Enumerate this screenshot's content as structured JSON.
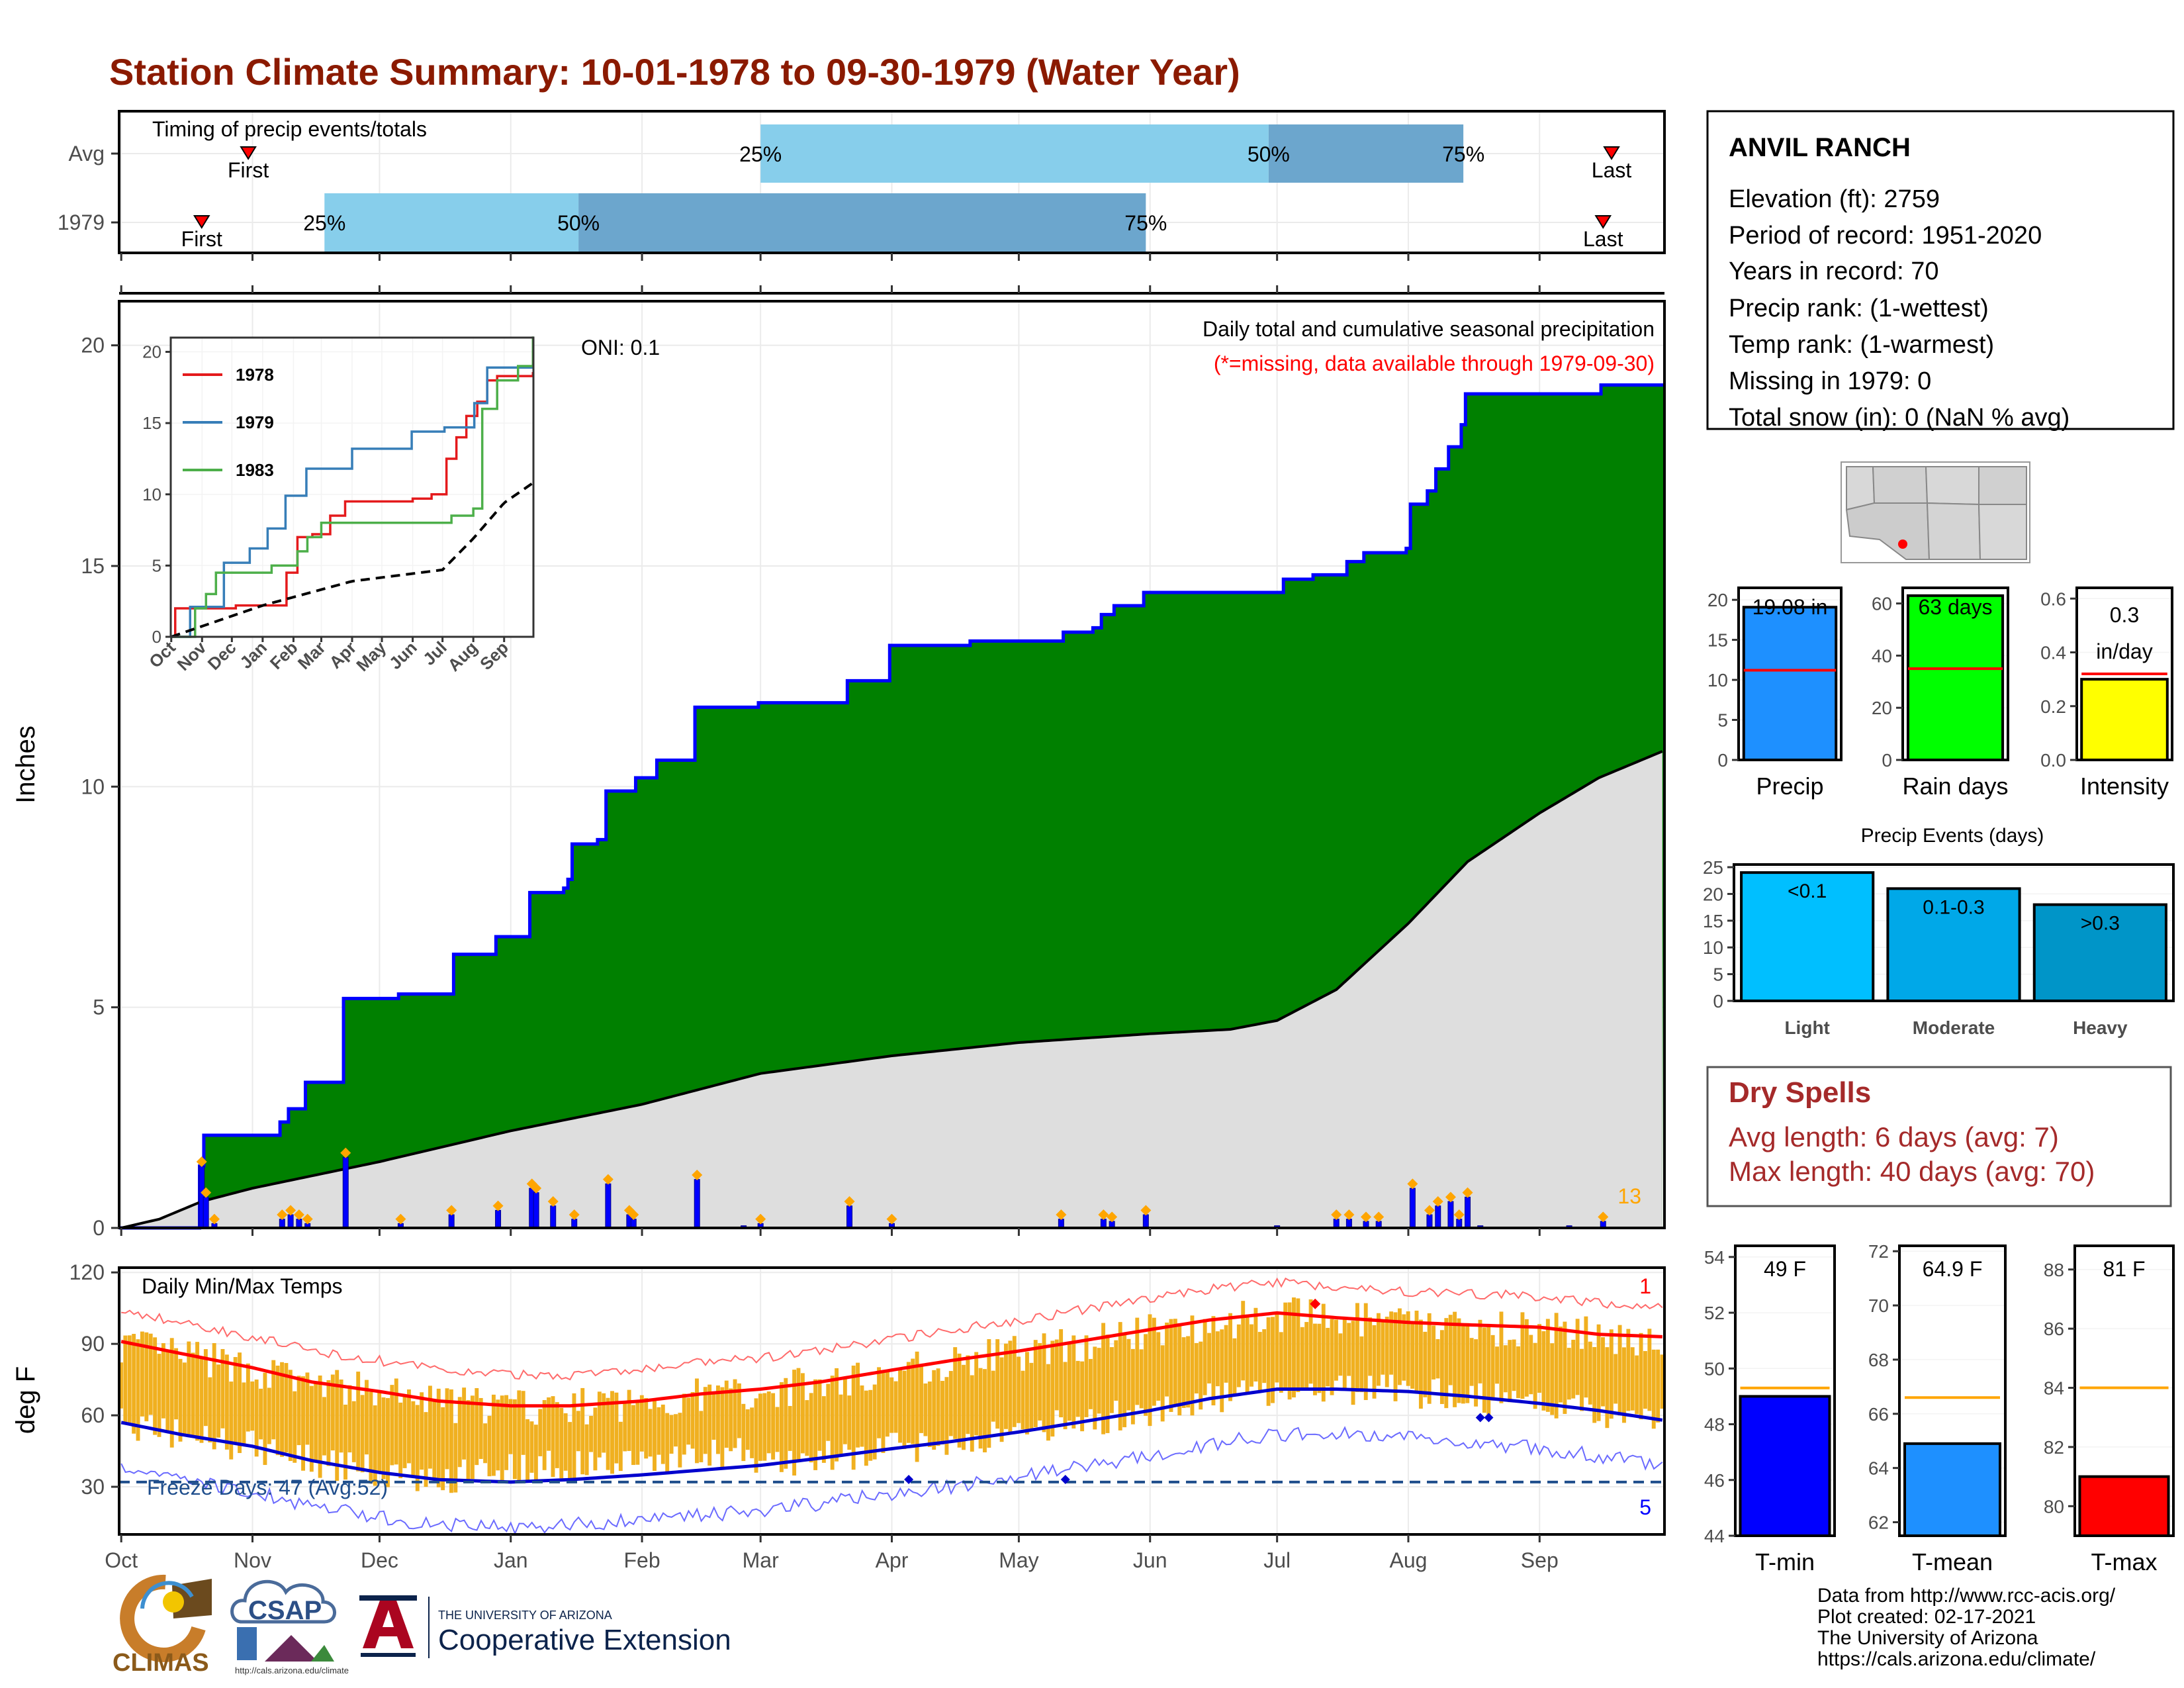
{
  "title": "Station Climate Summary: 10-01-1978 to 09-30-1979 (Water Year)",
  "colors": {
    "title": "#8b1a00",
    "green": "#008000",
    "blue": "#0000ff",
    "gold": "#f0b020",
    "red": "#ff0000",
    "navy": "#00008b",
    "dryspell": "#a52a2a"
  },
  "station": {
    "name": "ANVIL RANCH",
    "lines": [
      "Elevation (ft): 2759",
      "Period of record: 1951-2020",
      "Years in record: 70",
      "Precip rank:  (1-wettest)",
      "Temp rank:  (1-warmest)",
      "Missing in 1979: 0",
      "Total snow (in): 0 (NaN % avg)"
    ]
  },
  "dry_spells": {
    "title": "Dry Spells",
    "avg": "Avg length: 6 days (avg: 7)",
    "max": "Max length: 40 days (avg: 70)"
  },
  "footer": [
    "Data from http://www.rcc-acis.org/",
    "Plot created: 02-17-2021",
    "The University of Arizona",
    "https://cals.arizona.edu/climate/"
  ],
  "logos": {
    "climas": "CLIMAS",
    "csap": "CSAP",
    "csap_url": "http://cals.arizona.edu/climate",
    "ua_small": "THE UNIVERSITY OF ARIZONA",
    "ua_big": "Cooperative Extension"
  },
  "chart_data": [
    {
      "id": "timing",
      "type": "bar",
      "title": "Timing of precip events/totals",
      "rows": [
        {
          "name": "Avg",
          "first": "Oct 31",
          "p25": "Mar 1",
          "p50": "Jun 29",
          "p75": "Aug 14",
          "last": "Sep 18"
        },
        {
          "name": "1979",
          "first": "Oct 20",
          "p25": "Nov 18",
          "p50": "Jan 17",
          "p75": "May 31",
          "last": "Sep 16"
        }
      ],
      "labels": {
        "first": "First",
        "last": "Last",
        "p25": "25%",
        "p50": "50%",
        "p75": "75%"
      }
    },
    {
      "id": "precip",
      "type": "area",
      "ylabel": "Inches",
      "ylim": [
        0,
        21
      ],
      "yticks": [
        0,
        5,
        10,
        15,
        20
      ],
      "note": "Daily total and cumulative seasonal precipitation",
      "missing_note": "(*=missing, data available through 1979-09-30)",
      "oni": "ONI: 0.1",
      "count_label": "13",
      "cumulative_1979": [
        [
          "Oct 1",
          0
        ],
        [
          "Oct 20",
          1.4
        ],
        [
          "Oct 21",
          2.1
        ],
        [
          "Nov 5",
          2.1
        ],
        [
          "Nov 8",
          2.4
        ],
        [
          "Nov 10",
          2.7
        ],
        [
          "Nov 14",
          3.3
        ],
        [
          "Nov 22",
          3.3
        ],
        [
          "Nov 23",
          5.2
        ],
        [
          "Dec 5",
          5.2
        ],
        [
          "Dec 6",
          5.3
        ],
        [
          "Dec 17",
          5.3
        ],
        [
          "Dec 19",
          6.2
        ],
        [
          "Dec 28",
          6.2
        ],
        [
          "Dec 29",
          6.6
        ],
        [
          "Jan 5",
          6.6
        ],
        [
          "Jan 6",
          7.6
        ],
        [
          "Jan 14",
          7.7
        ],
        [
          "Jan 15",
          7.9
        ],
        [
          "Jan 16",
          8.7
        ],
        [
          "Jan 22",
          8.8
        ],
        [
          "Jan 24",
          9.9
        ],
        [
          "Jan 31",
          10.2
        ],
        [
          "Feb 5",
          10.6
        ],
        [
          "Feb 13",
          10.6
        ],
        [
          "Feb 14",
          11.8
        ],
        [
          "Feb 28",
          11.8
        ],
        [
          "Mar 1",
          11.9
        ],
        [
          "Mar 20",
          11.9
        ],
        [
          "Mar 22",
          12.4
        ],
        [
          "Mar 30",
          12.4
        ],
        [
          "Apr 1",
          13.2
        ],
        [
          "Apr 20",
          13.3
        ],
        [
          "May 10",
          13.3
        ],
        [
          "May 12",
          13.5
        ],
        [
          "May 19",
          13.6
        ],
        [
          "May 21",
          13.9
        ],
        [
          "May 24",
          14.1
        ],
        [
          "May 31",
          14.4
        ],
        [
          "Jun 30",
          14.4
        ],
        [
          "Jul 3",
          14.7
        ],
        [
          "Jul 10",
          14.8
        ],
        [
          "Jul 18",
          15.1
        ],
        [
          "Jul 22",
          15.3
        ],
        [
          "Aug 1",
          15.4
        ],
        [
          "Aug 2",
          16.4
        ],
        [
          "Aug 6",
          16.7
        ],
        [
          "Aug 8",
          17.2
        ],
        [
          "Aug 11",
          17.7
        ],
        [
          "Aug 14",
          18.2
        ],
        [
          "Aug 15",
          18.9
        ],
        [
          "Aug 31",
          18.9
        ],
        [
          "Sep 16",
          19.1
        ],
        [
          "Sep 30",
          19.1
        ]
      ],
      "climatology": [
        [
          "Oct 1",
          0
        ],
        [
          "Oct 10",
          0.2
        ],
        [
          "Oct 20",
          0.6
        ],
        [
          "Nov 1",
          0.9
        ],
        [
          "Dec 1",
          1.5
        ],
        [
          "Jan 1",
          2.2
        ],
        [
          "Feb 1",
          2.8
        ],
        [
          "Mar 1",
          3.5
        ],
        [
          "Apr 1",
          3.9
        ],
        [
          "May 1",
          4.2
        ],
        [
          "Jun 1",
          4.4
        ],
        [
          "Jun 20",
          4.5
        ],
        [
          "Jul 1",
          4.7
        ],
        [
          "Jul 15",
          5.4
        ],
        [
          "Aug 1",
          6.9
        ],
        [
          "Aug 15",
          8.3
        ],
        [
          "Sep 1",
          9.4
        ],
        [
          "Sep 15",
          10.2
        ],
        [
          "Sep 30",
          10.8
        ]
      ],
      "daily_1979": [
        [
          "Oct 20",
          1.4
        ],
        [
          "Oct 21",
          0.7
        ],
        [
          "Oct 23",
          0.1
        ],
        [
          "Nov 8",
          0.2
        ],
        [
          "Nov 10",
          0.3
        ],
        [
          "Nov 12",
          0.2
        ],
        [
          "Nov 14",
          0.1
        ],
        [
          "Nov 23",
          1.6
        ],
        [
          "Dec 6",
          0.1
        ],
        [
          "Dec 18",
          0.3
        ],
        [
          "Dec 29",
          0.4
        ],
        [
          "Jan 6",
          0.9
        ],
        [
          "Jan 7",
          0.8
        ],
        [
          "Jan 11",
          0.5
        ],
        [
          "Jan 16",
          0.2
        ],
        [
          "Jan 24",
          1.0
        ],
        [
          "Jan 29",
          0.3
        ],
        [
          "Jan 30",
          0.2
        ],
        [
          "Feb 14",
          1.1
        ],
        [
          "Feb 25",
          0.05
        ],
        [
          "Mar 1",
          0.1
        ],
        [
          "Mar 22",
          0.5
        ],
        [
          "Apr 1",
          0.1
        ],
        [
          "May 11",
          0.2
        ],
        [
          "May 21",
          0.2
        ],
        [
          "May 23",
          0.15
        ],
        [
          "May 31",
          0.3
        ],
        [
          "Jul 1",
          0.05
        ],
        [
          "Jul 15",
          0.2
        ],
        [
          "Jul 18",
          0.2
        ],
        [
          "Jul 22",
          0.15
        ],
        [
          "Jul 25",
          0.15
        ],
        [
          "Aug 2",
          0.9
        ],
        [
          "Aug 6",
          0.3
        ],
        [
          "Aug 8",
          0.5
        ],
        [
          "Aug 11",
          0.6
        ],
        [
          "Aug 13",
          0.2
        ],
        [
          "Aug 15",
          0.7
        ],
        [
          "Aug 18",
          0.05
        ],
        [
          "Sep 8",
          0.05
        ],
        [
          "Sep 16",
          0.15
        ]
      ],
      "xticks": [
        "Oct",
        "Nov",
        "Dec",
        "Jan",
        "Feb",
        "Mar",
        "Apr",
        "May",
        "Jun",
        "Jul",
        "Aug",
        "Sep"
      ]
    },
    {
      "id": "inset",
      "type": "line",
      "xticks": [
        "Oct",
        "Nov",
        "Dec",
        "Jan",
        "Feb",
        "Mar",
        "Apr",
        "May",
        "Jun",
        "Jul",
        "Aug",
        "Sep"
      ],
      "yticks": [
        0,
        5,
        10,
        15,
        20
      ],
      "ylim": [
        0,
        21
      ],
      "series": [
        {
          "name": "1978",
          "color": "#e41a1c",
          "values": [
            [
              "Oct 1",
              0
            ],
            [
              "Oct 5",
              2
            ],
            [
              "Nov 1",
              2
            ],
            [
              "Dec 5",
              2.2
            ],
            [
              "Jan 25",
              4.5
            ],
            [
              "Feb 5",
              7
            ],
            [
              "Feb 20",
              7.2
            ],
            [
              "Mar 10",
              8.5
            ],
            [
              "Mar 25",
              9.5
            ],
            [
              "Jun 1",
              9.7
            ],
            [
              "Jun 20",
              10
            ],
            [
              "Jul 5",
              12.5
            ],
            [
              "Jul 15",
              14
            ],
            [
              "Jul 25",
              15.5
            ],
            [
              "Aug 5",
              16.5
            ],
            [
              "Aug 15",
              18
            ],
            [
              "Aug 25",
              18.3
            ],
            [
              "Sep 30",
              18.5
            ]
          ]
        },
        {
          "name": "1979",
          "color": "#377eb8",
          "values": [
            [
              "Oct 1",
              0
            ],
            [
              "Oct 20",
              2.1
            ],
            [
              "Nov 23",
              5.2
            ],
            [
              "Dec 19",
              6.2
            ],
            [
              "Jan 6",
              7.6
            ],
            [
              "Jan 24",
              9.9
            ],
            [
              "Feb 14",
              11.8
            ],
            [
              "Apr 1",
              13.2
            ],
            [
              "May 31",
              14.4
            ],
            [
              "Jul 3",
              14.7
            ],
            [
              "Aug 2",
              16.4
            ],
            [
              "Aug 15",
              18.9
            ],
            [
              "Sep 30",
              19.1
            ]
          ]
        },
        {
          "name": "1983",
          "color": "#4daf4a",
          "values": [
            [
              "Oct 1",
              0
            ],
            [
              "Oct 25",
              2
            ],
            [
              "Nov 5",
              3
            ],
            [
              "Nov 15",
              4.5
            ],
            [
              "Jan 10",
              5
            ],
            [
              "Feb 5",
              6
            ],
            [
              "Feb 15",
              7
            ],
            [
              "Mar 1",
              8
            ],
            [
              "Jul 10",
              8.5
            ],
            [
              "Aug 1",
              9
            ],
            [
              "Aug 10",
              16
            ],
            [
              "Aug 25",
              18
            ],
            [
              "Sep 15",
              19
            ],
            [
              "Sep 30",
              21
            ]
          ]
        },
        {
          "name": "Avg",
          "color": "#000000",
          "dashed": true,
          "values": [
            [
              "Oct 1",
              0
            ],
            [
              "Jan 1",
              2.2
            ],
            [
              "Apr 1",
              3.9
            ],
            [
              "Jul 1",
              4.7
            ],
            [
              "Aug 1",
              6.9
            ],
            [
              "Sep 1",
              9.4
            ],
            [
              "Sep 30",
              10.8
            ]
          ]
        }
      ]
    },
    {
      "id": "temps",
      "type": "line",
      "title": "Daily Min/Max Temps",
      "ylabel": "deg F",
      "ylim": [
        10,
        122
      ],
      "yticks": [
        30,
        60,
        90,
        120
      ],
      "freeze_label": "Freeze Days: 47 (Avg:52)",
      "freeze_line": 32,
      "record_high_count": "1",
      "record_low_count": "5",
      "avg_tmax": [
        [
          "Oct 1",
          91
        ],
        [
          "Oct 15",
          86
        ],
        [
          "Nov 1",
          80
        ],
        [
          "Nov 15",
          74
        ],
        [
          "Dec 1",
          70
        ],
        [
          "Dec 15",
          66
        ],
        [
          "Jan 1",
          64
        ],
        [
          "Jan 15",
          64
        ],
        [
          "Feb 1",
          66
        ],
        [
          "Feb 15",
          69
        ],
        [
          "Mar 1",
          71
        ],
        [
          "Mar 15",
          74
        ],
        [
          "Apr 1",
          79
        ],
        [
          "Apr 15",
          83
        ],
        [
          "May 1",
          87
        ],
        [
          "May 15",
          91
        ],
        [
          "Jun 1",
          96
        ],
        [
          "Jun 15",
          100
        ],
        [
          "Jul 1",
          103
        ],
        [
          "Jul 15",
          101
        ],
        [
          "Aug 1",
          99
        ],
        [
          "Aug 15",
          98
        ],
        [
          "Sep 1",
          97
        ],
        [
          "Sep 15",
          94
        ],
        [
          "Sep 30",
          93
        ]
      ],
      "avg_tmin": [
        [
          "Oct 1",
          57
        ],
        [
          "Oct 15",
          52
        ],
        [
          "Nov 1",
          47
        ],
        [
          "Nov 15",
          41
        ],
        [
          "Dec 1",
          36
        ],
        [
          "Dec 15",
          33
        ],
        [
          "Jan 1",
          32
        ],
        [
          "Jan 15",
          33
        ],
        [
          "Feb 1",
          35
        ],
        [
          "Feb 15",
          37
        ],
        [
          "Mar 1",
          39
        ],
        [
          "Mar 15",
          42
        ],
        [
          "Apr 1",
          46
        ],
        [
          "Apr 15",
          49
        ],
        [
          "May 1",
          53
        ],
        [
          "May 15",
          57
        ],
        [
          "Jun 1",
          62
        ],
        [
          "Jun 15",
          67
        ],
        [
          "Jul 1",
          71
        ],
        [
          "Jul 15",
          71
        ],
        [
          "Aug 1",
          70
        ],
        [
          "Aug 15",
          68
        ],
        [
          "Sep 1",
          65
        ],
        [
          "Sep 15",
          62
        ],
        [
          "Sep 30",
          58
        ]
      ],
      "xticks": [
        "Oct",
        "Nov",
        "Dec",
        "Jan",
        "Feb",
        "Mar",
        "Apr",
        "May",
        "Jun",
        "Jul",
        "Aug",
        "Sep"
      ]
    },
    {
      "id": "precip_total",
      "type": "bar",
      "categories": [
        "Precip"
      ],
      "values": [
        19.08
      ],
      "avg": 11.2,
      "label": "19.08 in",
      "ylim": [
        0,
        21.5
      ],
      "yticks": [
        0,
        5,
        10,
        15,
        20
      ],
      "color": "#1e90ff"
    },
    {
      "id": "rain_days",
      "type": "bar",
      "categories": [
        "Rain days"
      ],
      "values": [
        63
      ],
      "avg": 35,
      "label": "63 days",
      "ylim": [
        0,
        66
      ],
      "yticks": [
        0,
        20,
        40,
        60
      ],
      "color": "#00ff00"
    },
    {
      "id": "intensity",
      "type": "bar",
      "categories": [
        "Intensity"
      ],
      "values": [
        0.3
      ],
      "avg": 0.32,
      "label": "0.3",
      "label2": "in/day",
      "ylim": [
        0,
        0.64
      ],
      "yticks": [
        "0.0",
        "0.2",
        "0.4",
        "0.6"
      ],
      "color": "#ffff00"
    },
    {
      "id": "events",
      "type": "bar",
      "title": "Precip Events (days)",
      "categories": [
        "Light",
        "Moderate",
        "Heavy"
      ],
      "values": [
        24,
        21,
        18
      ],
      "value_labels": [
        "<0.1",
        "0.1-0.3",
        ">0.3"
      ],
      "ylim": [
        0,
        25.5
      ],
      "yticks": [
        0,
        5,
        10,
        15,
        20,
        25
      ],
      "colors": [
        "#00bfff",
        "#00a8e8",
        "#0095c8"
      ]
    },
    {
      "id": "tmin",
      "type": "bar",
      "categories": [
        "T-min"
      ],
      "values": [
        49
      ],
      "avg": 49.3,
      "label": "49 F",
      "ylim": [
        44,
        54.4
      ],
      "yticks": [
        44,
        46,
        48,
        50,
        52,
        54
      ],
      "color": "#0000ff"
    },
    {
      "id": "tmean",
      "type": "bar",
      "categories": [
        "T-mean"
      ],
      "values": [
        64.9
      ],
      "avg": 66.6,
      "label": "64.9 F",
      "ylim": [
        61.5,
        72.2
      ],
      "yticks": [
        62,
        64,
        66,
        68,
        70,
        72
      ],
      "color": "#1e90ff"
    },
    {
      "id": "tmax",
      "type": "bar",
      "categories": [
        "T-max"
      ],
      "values": [
        81
      ],
      "avg": 84,
      "label": "81 F",
      "ylim": [
        79,
        88.8
      ],
      "yticks": [
        80,
        82,
        84,
        86,
        88
      ],
      "color": "#ff0000"
    }
  ]
}
